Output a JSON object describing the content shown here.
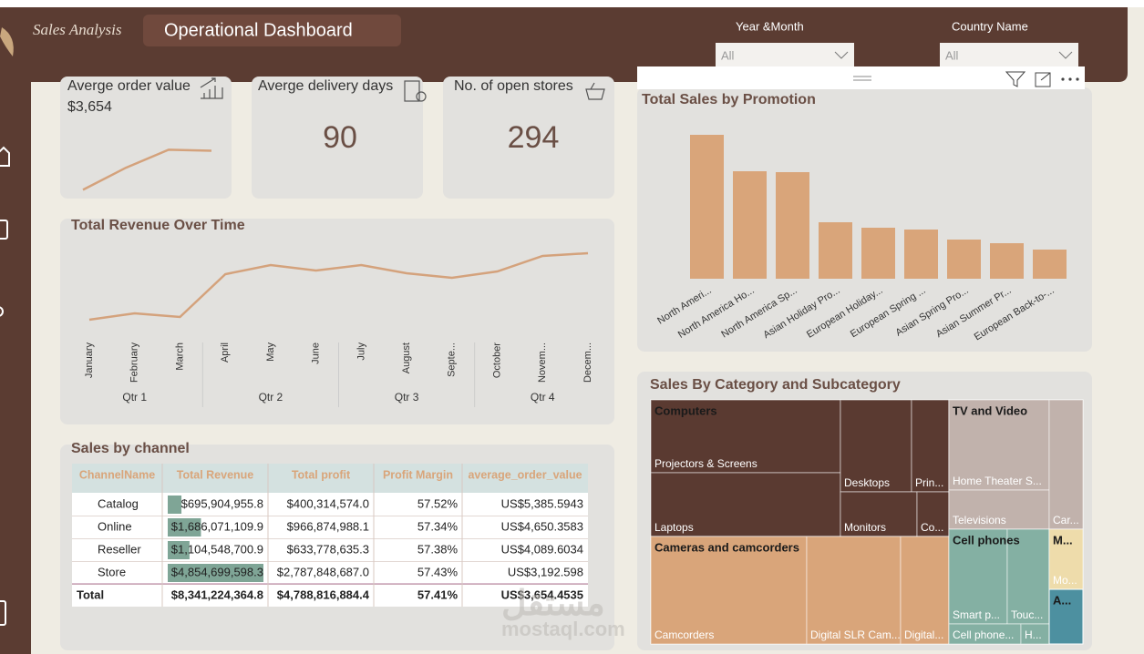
{
  "header": {
    "logo": "Sales Analysis",
    "title": "Operational Dashboard"
  },
  "filters": [
    {
      "label": "Year &Month",
      "value": "All"
    },
    {
      "label": "Country Name",
      "value": "All"
    }
  ],
  "kpis": [
    {
      "title": "Averge order value",
      "value": "$3,654"
    },
    {
      "title": "Averge delivery days",
      "value": 90
    },
    {
      "title": "No. of open stores",
      "value": 294
    }
  ],
  "chart_data": [
    {
      "type": "line",
      "values": [
        0.3,
        1.4,
        2.3,
        2.25
      ],
      "ylim": [
        0,
        2.5
      ],
      "color": "#d4a27c"
    },
    {
      "type": "line",
      "title": "Total Revenue Over Time",
      "categories": [
        "January",
        "February",
        "March",
        "April",
        "May",
        "June",
        "July",
        "August",
        "Septe...",
        "October",
        "Novem...",
        "Decem..."
      ],
      "x_groups": [
        "Qtr 1",
        "Qtr 2",
        "Qtr 3",
        "Qtr 4"
      ],
      "values": [
        19,
        26,
        22,
        69,
        79,
        73,
        79,
        70,
        65,
        72,
        89,
        92
      ],
      "ylim": [
        0,
        100
      ],
      "color": "#d4a27c"
    },
    {
      "type": "bar",
      "title": "Total Sales by Promotion",
      "categories": [
        "North Ameri...",
        "North America Ho...",
        "North America Sp...",
        "Asian Holiday Pro...",
        "European Holiday...",
        "European Spring ...",
        "Asian Spring Pro...",
        "Asian Summer Pr...",
        "European Back-to-..."
      ],
      "values": [
        158,
        118,
        117,
        62,
        56,
        54,
        43,
        39,
        32
      ],
      "ylim": [
        0,
        170
      ],
      "color": "#d9a57a"
    },
    {
      "type": "treemap",
      "title": "Sales By Category and Subcategory",
      "groups": [
        {
          "name": "Computers",
          "color": "#5a3a31",
          "children": [
            {
              "name": "Projectors & Screens",
              "value": 13.1
            },
            {
              "name": "Laptops",
              "value": 11.5
            },
            {
              "name": "Desktops",
              "value": 6.2
            },
            {
              "name": "Prin...",
              "value": 3.3
            },
            {
              "name": "Monitors",
              "value": 3.2
            },
            {
              "name": "Co...",
              "value": 1.4
            }
          ]
        },
        {
          "name": "TV and Video",
          "color": "#c1b2ac",
          "children": [
            {
              "name": "Home Theater S...",
              "value": 8.6
            },
            {
              "name": "Televisions",
              "value": 3.7
            },
            {
              "name": "Car...",
              "value": 4.1
            }
          ]
        },
        {
          "name": "Cameras and camcorders",
          "color": "#d9a57a",
          "children": [
            {
              "name": "Camcorders",
              "value": 15.9
            },
            {
              "name": "Digital SLR Cam...",
              "value": 9.6
            },
            {
              "name": "Digital...",
              "value": 4.9
            }
          ]
        },
        {
          "name": "Cell phones",
          "color": "#84b0a3",
          "children": [
            {
              "name": "Smart p...",
              "value": 5.2
            },
            {
              "name": "Touc...",
              "value": 3.8
            },
            {
              "name": "Cell phone...",
              "value": 1.4
            },
            {
              "name": "H...",
              "value": 0.5
            }
          ]
        },
        {
          "name": "M...",
          "color": "#eedcab",
          "children": [
            {
              "name": "Mo...",
              "value": 1.9
            }
          ]
        },
        {
          "name": "A...",
          "color": "#4d90a0",
          "value": 1.7
        }
      ]
    }
  ],
  "table": {
    "title": "Sales by channel",
    "columns": [
      "ChannelName",
      "Total Revenue",
      "Total profit",
      "Profit Margin",
      "average_order_value"
    ],
    "rows": [
      [
        "Catalog",
        {
          "value": 695904955.8,
          "label": "$695,904,955.8"
        },
        "$400,314,574.0",
        "57.52%",
        "US$5,385.5943"
      ],
      [
        "Online",
        {
          "value": 1686071109.9,
          "label": "$1,686,071,109.9"
        },
        "$966,874,988.1",
        "57.34%",
        "US$4,650.3583"
      ],
      [
        "Reseller",
        {
          "value": 1104548700.9,
          "label": "$1,104,548,700.9"
        },
        "$633,778,635.3",
        "57.38%",
        "US$4,089.6034"
      ],
      [
        "Store",
        {
          "value": 4854699598.3,
          "label": "$4,854,699,598.3"
        },
        "$2,787,848,687.0",
        "57.43%",
        "US$3,192.598"
      ]
    ],
    "total": [
      "Total",
      "$8,341,224,364.8",
      "$4,788,816,884.4",
      "57.41%",
      "US$3,654.4535"
    ]
  },
  "watermark": {
    "arabic": "مستقل",
    "latin": "mostaql.com"
  }
}
